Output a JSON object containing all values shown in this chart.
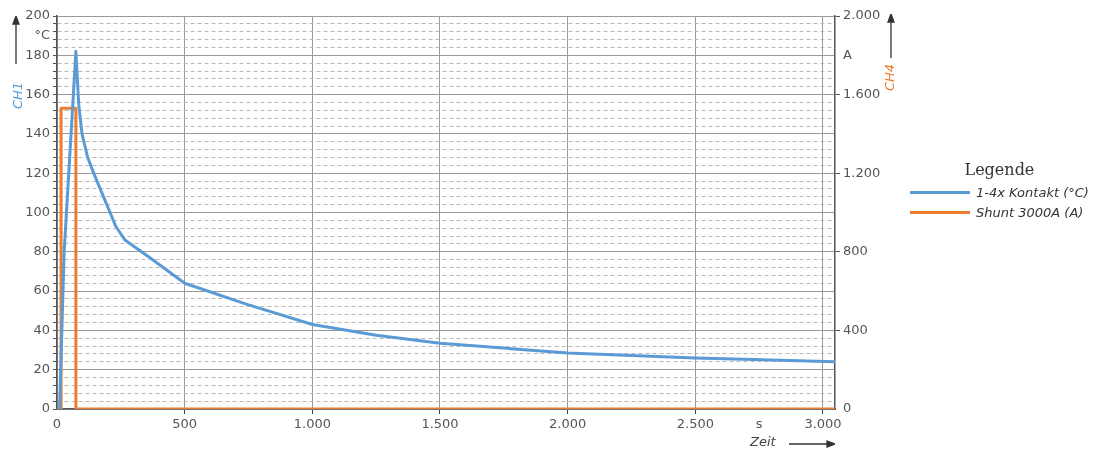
{
  "chart_data": {
    "type": "line",
    "xlabel": "Zeit",
    "ylabel": "CH1",
    "y2label": "CH4",
    "legend_title": "Legende",
    "legend": "right",
    "grid": true,
    "xlim": [
      0,
      3047
    ],
    "xticks": [
      0,
      500,
      {
        "value": 1000,
        "label": "1.000"
      },
      {
        "value": 1500,
        "label": "1.500"
      },
      {
        "value": 2000,
        "label": "2.000"
      },
      {
        "value": 2500,
        "label": "2.500"
      },
      {
        "value": 2750,
        "label": "s"
      },
      {
        "value": 3000,
        "label": "3.000"
      }
    ],
    "ylim": [
      0,
      200
    ],
    "yticks": [
      0,
      {
        "value": 4,
        "label": null
      },
      {
        "value": 8,
        "label": null
      },
      {
        "value": 12,
        "label": null
      },
      {
        "value": 16,
        "label": null
      },
      20,
      {
        "value": 24,
        "label": null
      },
      {
        "value": 28,
        "label": null
      },
      {
        "value": 32,
        "label": null
      },
      {
        "value": 36,
        "label": null
      },
      40,
      {
        "value": 44,
        "label": null
      },
      {
        "value": 48,
        "label": null
      },
      {
        "value": 52,
        "label": null
      },
      {
        "value": 56,
        "label": null
      },
      60,
      {
        "value": 64,
        "label": null
      },
      {
        "value": 68,
        "label": null
      },
      {
        "value": 72,
        "label": null
      },
      {
        "value": 76,
        "label": null
      },
      80,
      {
        "value": 84,
        "label": null
      },
      {
        "value": 88,
        "label": null
      },
      {
        "value": 92,
        "label": null
      },
      {
        "value": 96,
        "label": null
      },
      100,
      {
        "value": 104,
        "label": null
      },
      {
        "value": 108,
        "label": null
      },
      {
        "value": 112,
        "label": null
      },
      {
        "value": 116,
        "label": null
      },
      120,
      {
        "value": 124,
        "label": null
      },
      {
        "value": 128,
        "label": null
      },
      {
        "value": 132,
        "label": null
      },
      {
        "value": 136,
        "label": null
      },
      140,
      {
        "value": 144,
        "label": null
      },
      {
        "value": 148,
        "label": null
      },
      {
        "value": 152,
        "label": null
      },
      {
        "value": 156,
        "label": null
      },
      160,
      {
        "value": 164,
        "label": null
      },
      {
        "value": 168,
        "label": null
      },
      {
        "value": 172,
        "label": null
      },
      {
        "value": 176,
        "label": null
      },
      180,
      {
        "value": 184,
        "label": null
      },
      {
        "value": 188,
        "label": null
      },
      {
        "value": 190,
        "label": "°C"
      },
      {
        "value": 192,
        "label": null
      },
      {
        "value": 196,
        "label": null
      },
      200
    ],
    "y2lim": [
      0,
      2000
    ],
    "y2ticks": [
      0,
      400,
      800,
      {
        "value": 1200,
        "label": "1.200"
      },
      {
        "value": 1600,
        "label": "1.600"
      },
      {
        "value": 1800,
        "label": "A"
      },
      {
        "value": 2000,
        "label": "2.000"
      }
    ],
    "series": [
      {
        "name": "1-4x Kontakt (°C)",
        "color": "#5b9bd5",
        "x": [
          10,
          28,
          74,
          85,
          98,
          120,
          150,
          195,
          230,
          266,
          364,
          500,
          750,
          1000,
          1250,
          1500,
          2000,
          2500,
          3047
        ],
        "values": [
          0,
          80,
          182,
          155,
          140,
          128,
          118,
          104,
          93,
          86,
          77,
          64,
          53,
          43,
          37.5,
          33.5,
          28.5,
          26,
          24
        ]
      },
      {
        "name": "Shunt 3000A (A)",
        "color": "#ed7d31",
        "axis": "y2",
        "x": [
          0,
          16,
          16,
          74,
          74,
          3047
        ],
        "values": [
          0,
          0,
          1530,
          1530,
          0,
          0
        ]
      }
    ]
  }
}
